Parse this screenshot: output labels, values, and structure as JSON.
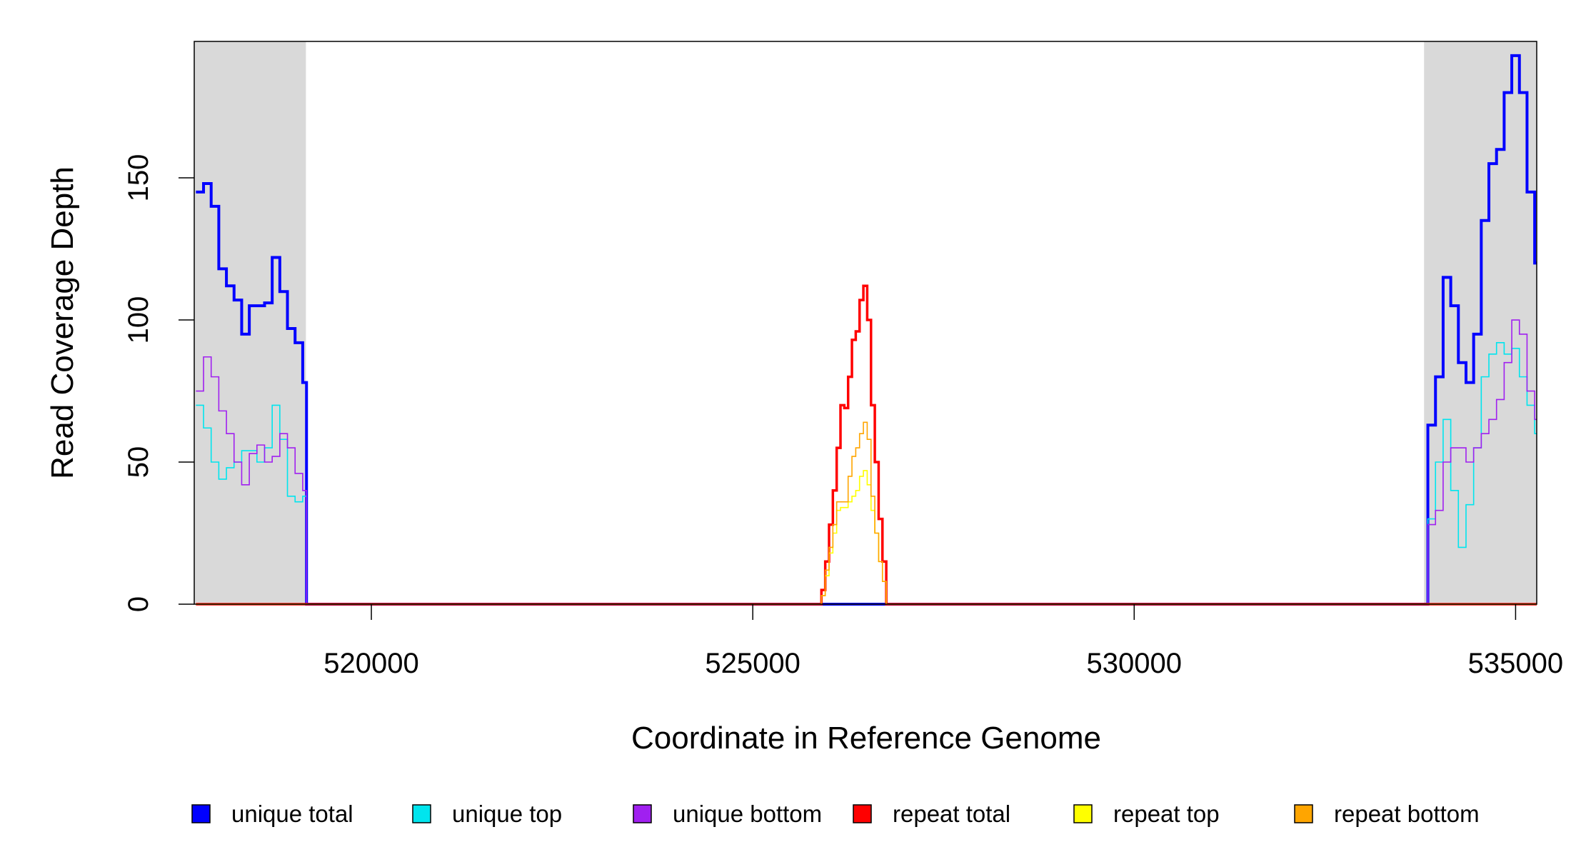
{
  "chart_data": {
    "type": "step",
    "x_label": "Coordinate in Reference Genome",
    "y_label": "Read Coverage Depth",
    "xlim": [
      517678,
      535277
    ],
    "ylim": [
      0,
      198
    ],
    "xticks": [
      520000,
      525000,
      530000,
      535000
    ],
    "yticks": [
      0,
      50,
      100,
      150
    ],
    "shaded_regions": [
      [
        517678,
        519142
      ],
      [
        533800,
        535277
      ]
    ],
    "shade_color": "#d9d9d9",
    "x": [
      517700,
      517800,
      517900,
      518000,
      518100,
      518200,
      518300,
      518400,
      518500,
      518600,
      518700,
      518800,
      518900,
      519000,
      519100,
      519150,
      525850,
      525900,
      525950,
      526000,
      526050,
      526100,
      526150,
      526200,
      526250,
      526300,
      526350,
      526400,
      526450,
      526500,
      526550,
      526600,
      526650,
      526700,
      526750,
      526800,
      533800,
      533850,
      533950,
      534050,
      534150,
      534250,
      534350,
      534450,
      534550,
      534650,
      534750,
      534850,
      534950,
      535050,
      535150,
      535250
    ],
    "series": [
      {
        "name": "unique total",
        "color": "#0000ff",
        "width": 4,
        "values": [
          145,
          148,
          140,
          118,
          112,
          107,
          95,
          105,
          105,
          106,
          122,
          110,
          97,
          92,
          78,
          0,
          0,
          0,
          0,
          0,
          0,
          0,
          0,
          0,
          0,
          0,
          0,
          0,
          0,
          0,
          0,
          0,
          0,
          0,
          0,
          0,
          0,
          63,
          80,
          115,
          105,
          85,
          78,
          95,
          135,
          155,
          160,
          180,
          193,
          180,
          145,
          120
        ]
      },
      {
        "name": "unique top",
        "color": "#00e5ee",
        "width": 1.6,
        "values": [
          70,
          62,
          50,
          44,
          48,
          50,
          54,
          54,
          50,
          55,
          70,
          58,
          38,
          36,
          38,
          0,
          0,
          0,
          0,
          0,
          0,
          0,
          0,
          0,
          0,
          0,
          0,
          0,
          0,
          0,
          0,
          0,
          0,
          0,
          0,
          0,
          0,
          30,
          50,
          65,
          40,
          20,
          35,
          55,
          80,
          88,
          92,
          88,
          90,
          80,
          70,
          60
        ]
      },
      {
        "name": "unique bottom",
        "color": "#a020f0",
        "width": 1.6,
        "values": [
          75,
          87,
          80,
          68,
          60,
          50,
          42,
          53,
          56,
          50,
          52,
          60,
          55,
          46,
          40,
          0,
          0,
          0,
          0,
          0,
          0,
          0,
          0,
          0,
          0,
          0,
          0,
          0,
          0,
          0,
          0,
          0,
          0,
          0,
          0,
          0,
          0,
          28,
          33,
          50,
          55,
          55,
          50,
          55,
          60,
          65,
          72,
          85,
          100,
          95,
          75,
          65
        ]
      },
      {
        "name": "repeat total",
        "color": "#ff0000",
        "width": 3.5,
        "values": [
          0,
          0,
          0,
          0,
          0,
          0,
          0,
          0,
          0,
          0,
          0,
          0,
          0,
          0,
          0,
          0,
          0,
          5,
          15,
          28,
          40,
          55,
          70,
          69,
          80,
          93,
          96,
          107,
          112,
          100,
          70,
          50,
          30,
          15,
          0,
          0,
          0,
          0,
          0,
          0,
          0,
          0,
          0,
          0,
          0,
          0,
          0,
          0,
          0,
          0,
          0,
          0
        ]
      },
      {
        "name": "repeat top",
        "color": "#ffff00",
        "width": 1.6,
        "values": [
          0,
          0,
          0,
          0,
          0,
          0,
          0,
          0,
          0,
          0,
          0,
          0,
          0,
          0,
          0,
          0,
          0,
          3,
          10,
          18,
          25,
          33,
          34,
          34,
          36,
          38,
          40,
          45,
          47,
          42,
          33,
          25,
          15,
          8,
          0,
          0,
          0,
          0,
          0,
          0,
          0,
          0,
          0,
          0,
          0,
          0,
          0,
          0,
          0,
          0,
          0,
          0
        ]
      },
      {
        "name": "repeat bottom",
        "color": "#ffa500",
        "width": 1.6,
        "values": [
          0,
          0,
          0,
          0,
          0,
          0,
          0,
          0,
          0,
          0,
          0,
          0,
          0,
          0,
          0,
          0,
          0,
          3,
          12,
          20,
          28,
          36,
          36,
          36,
          45,
          52,
          55,
          60,
          64,
          58,
          38,
          25,
          15,
          8,
          0,
          0,
          0,
          0,
          0,
          0,
          0,
          0,
          0,
          0,
          0,
          0,
          0,
          0,
          0,
          0,
          0,
          0
        ]
      }
    ]
  }
}
